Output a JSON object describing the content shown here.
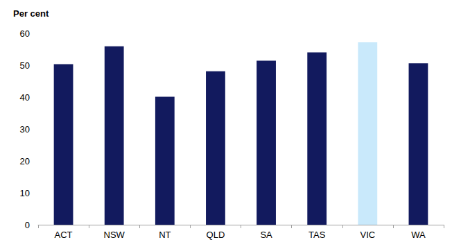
{
  "chart_data": {
    "type": "bar",
    "ylabel": "Per cent",
    "categories": [
      "ACT",
      "NSW",
      "NT",
      "QLD",
      "SA",
      "TAS",
      "VIC",
      "WA"
    ],
    "values": [
      50.3,
      55.9,
      40.1,
      48.1,
      51.4,
      54.0,
      57.2,
      50.6
    ],
    "colors": [
      "#121a5e",
      "#121a5e",
      "#121a5e",
      "#121a5e",
      "#121a5e",
      "#121a5e",
      "#c9e9fb",
      "#121a5e"
    ],
    "ylim": [
      0,
      60
    ],
    "yticks": [
      0,
      10,
      20,
      30,
      40,
      50,
      60
    ],
    "grid": false
  }
}
